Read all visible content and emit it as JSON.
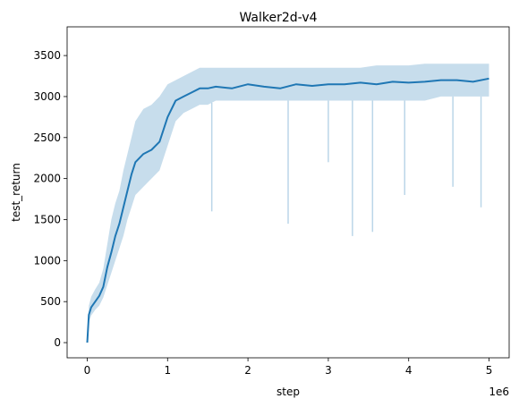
{
  "chart_data": {
    "type": "line",
    "title": "Walker2d-v4",
    "xlabel": "step",
    "ylabel": "test_return",
    "x_offset_label": "1e6",
    "xlim": [
      -250000,
      5250000
    ],
    "ylim": [
      -185,
      3850
    ],
    "x_ticks": [
      {
        "value": 0,
        "label": "0"
      },
      {
        "value": 1000000,
        "label": "1"
      },
      {
        "value": 2000000,
        "label": "2"
      },
      {
        "value": 3000000,
        "label": "3"
      },
      {
        "value": 4000000,
        "label": "4"
      },
      {
        "value": 5000000,
        "label": "5"
      }
    ],
    "y_ticks": [
      {
        "value": 0,
        "label": "0"
      },
      {
        "value": 500,
        "label": "500"
      },
      {
        "value": 1000,
        "label": "1000"
      },
      {
        "value": 1500,
        "label": "1500"
      },
      {
        "value": 2000,
        "label": "2000"
      },
      {
        "value": 2500,
        "label": "2500"
      },
      {
        "value": 3000,
        "label": "3000"
      },
      {
        "value": 3500,
        "label": "3500"
      }
    ],
    "grid": false,
    "legend": "none",
    "colors": {
      "line": "#1f77b4",
      "band": "#1f77b4",
      "axes": "#000000"
    },
    "series": [
      {
        "x": [
          0,
          20000,
          50000,
          100000,
          150000,
          200000,
          250000,
          300000,
          350000,
          400000,
          450000,
          500000,
          550000,
          600000,
          700000,
          800000,
          900000,
          1000000,
          1100000,
          1200000,
          1300000,
          1400000,
          1500000,
          1600000,
          1800000,
          2000000,
          2200000,
          2400000,
          2600000,
          2800000,
          3000000,
          3200000,
          3400000,
          3600000,
          3800000,
          4000000,
          4200000,
          4400000,
          4600000,
          4800000,
          5000000
        ],
        "y": [
          0,
          340,
          430,
          500,
          570,
          680,
          920,
          1100,
          1300,
          1450,
          1650,
          1850,
          2050,
          2200,
          2300,
          2350,
          2450,
          2750,
          2950,
          3000,
          3050,
          3100,
          3100,
          3120,
          3100,
          3150,
          3120,
          3100,
          3150,
          3130,
          3150,
          3150,
          3170,
          3150,
          3180,
          3170,
          3180,
          3200,
          3200,
          3180,
          3220
        ],
        "lower": [
          0,
          250,
          330,
          400,
          450,
          550,
          700,
          850,
          1000,
          1150,
          1300,
          1500,
          1650,
          1800,
          1900,
          2000,
          2100,
          2400,
          2700,
          2800,
          2850,
          2900,
          2900,
          2950,
          2950,
          2950,
          2950,
          2950,
          2950,
          2950,
          2950,
          2950,
          2950,
          2950,
          2950,
          2950,
          2950,
          3000,
          3000,
          3000,
          3000
        ],
        "upper": [
          0,
          450,
          560,
          650,
          730,
          900,
          1200,
          1500,
          1700,
          1850,
          2100,
          2300,
          2500,
          2700,
          2850,
          2900,
          3000,
          3150,
          3200,
          3250,
          3300,
          3350,
          3350,
          3350,
          3350,
          3350,
          3350,
          3350,
          3350,
          3350,
          3350,
          3350,
          3350,
          3380,
          3380,
          3380,
          3400,
          3400,
          3400,
          3400,
          3400
        ],
        "spikes": [
          {
            "x": 1550000,
            "y": 1600
          },
          {
            "x": 2500000,
            "y": 1450
          },
          {
            "x": 3000000,
            "y": 2200
          },
          {
            "x": 3300000,
            "y": 1300
          },
          {
            "x": 3550000,
            "y": 1350
          },
          {
            "x": 3950000,
            "y": 1800
          },
          {
            "x": 4550000,
            "y": 1900
          },
          {
            "x": 4900000,
            "y": 1650
          }
        ]
      }
    ]
  }
}
